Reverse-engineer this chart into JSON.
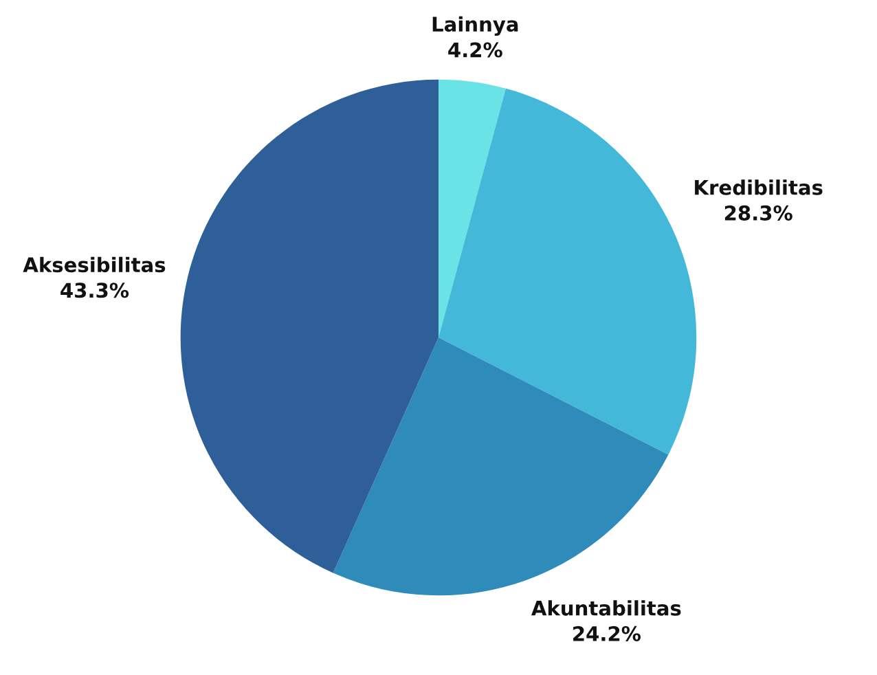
{
  "chart_data": {
    "type": "pie",
    "categories": [
      "Lainnya",
      "Kredibilitas",
      "Akuntabilitas",
      "Aksesibilitas"
    ],
    "values": [
      4.2,
      28.3,
      24.2,
      43.3
    ],
    "value_labels": [
      "4.2%",
      "28.3%",
      "24.2%",
      "43.3%"
    ],
    "colors": [
      "#6ae3e6",
      "#44b8d8",
      "#2e8bba",
      "#2e5f98"
    ]
  }
}
